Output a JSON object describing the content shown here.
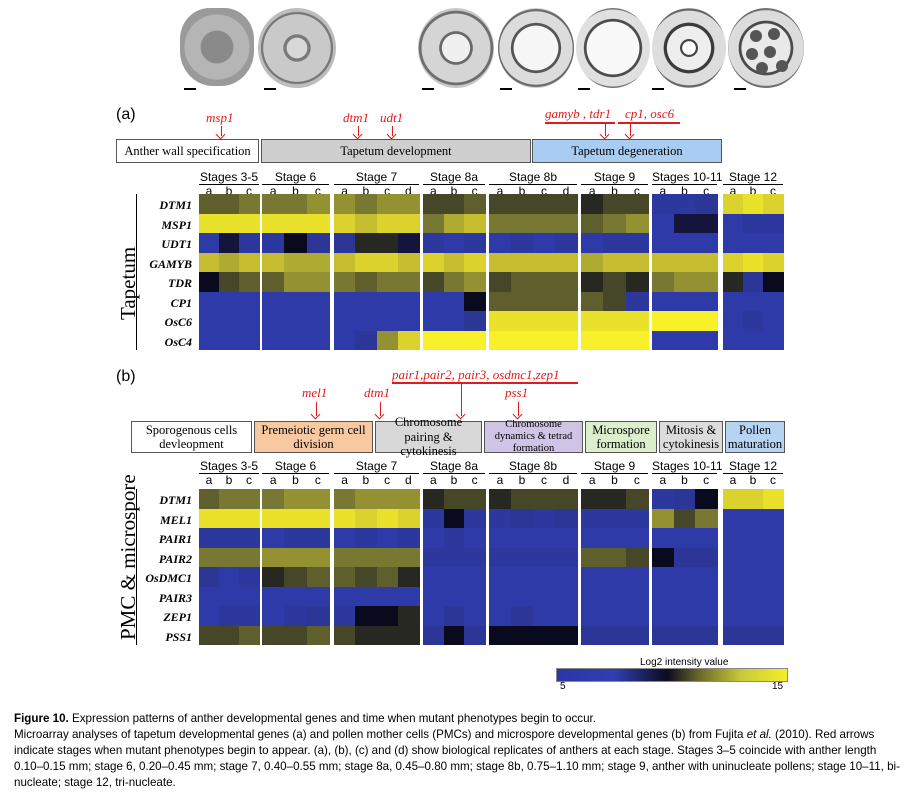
{
  "panel_a": {
    "label": "(a)",
    "side_label": "Tapetum",
    "mutants": [
      {
        "text": "msp1"
      },
      {
        "text": "dtm1"
      },
      {
        "text": "udt1"
      },
      {
        "text": "gamyb , tdr1"
      },
      {
        "text": "cp1, osc6"
      }
    ],
    "phases": [
      "Anther wall specification",
      "Tapetum development",
      "Tapetum degeneration"
    ],
    "genes": [
      "DTM1",
      "MSP1",
      "UDT1",
      "GAMYB",
      "TDR",
      "CP1",
      "OsC6",
      "OsC4"
    ]
  },
  "panel_b": {
    "label": "(b)",
    "side_label": "PMC & microspore",
    "mutants": [
      {
        "text": "mel1"
      },
      {
        "text": "dtm1"
      },
      {
        "text": "pair1,pair2, pair3, osdmc1,zep1"
      },
      {
        "text": "pss1"
      }
    ],
    "phases": [
      "Sporogenous cells devleopment",
      "Premeiotic germ cell division",
      "Chromosome pairing & cytokinesis",
      "Chromosome dynamics & tetrad formation",
      "Microspore formation",
      "Mitosis & cytokinesis",
      "Pollen maturation"
    ],
    "genes": [
      "DTM1",
      "MEL1",
      "PAIR1",
      "PAIR2",
      "OsDMC1",
      "PAIR3",
      "ZEP1",
      "PSS1"
    ]
  },
  "stages": [
    {
      "name": "Stages 3-5",
      "reps": [
        "a",
        "b",
        "c"
      ]
    },
    {
      "name": "Stage 6",
      "reps": [
        "a",
        "b",
        "c"
      ]
    },
    {
      "name": "Stage 7",
      "reps": [
        "a",
        "b",
        "c",
        "d"
      ]
    },
    {
      "name": "Stage 8a",
      "reps": [
        "a",
        "b",
        "c"
      ]
    },
    {
      "name": "Stage 8b",
      "reps": [
        "a",
        "b",
        "c",
        "d"
      ]
    },
    {
      "name": "Stage 9",
      "reps": [
        "a",
        "b",
        "c"
      ]
    },
    {
      "name": "Stages 10-11",
      "reps": [
        "a",
        "b",
        "c"
      ]
    },
    {
      "name": "Stage 12",
      "reps": [
        "a",
        "b",
        "c"
      ]
    }
  ],
  "heatmap_a": [
    [
      7,
      7,
      8,
      8,
      8,
      9,
      9,
      8,
      9,
      9,
      6,
      6,
      7,
      6,
      6,
      6,
      6,
      5,
      6,
      6,
      2,
      2,
      3,
      12,
      13,
      12
    ],
    [
      13,
      13,
      13,
      13,
      13,
      13,
      12,
      11,
      12,
      12,
      8,
      10,
      11,
      8,
      8,
      8,
      8,
      7,
      8,
      9,
      1,
      0,
      0,
      1,
      2,
      2
    ],
    [
      1,
      0,
      2,
      2,
      4,
      3,
      3,
      5,
      5,
      0,
      2,
      1,
      2,
      1,
      2,
      1,
      2,
      1,
      2,
      2,
      1,
      1,
      1,
      1,
      1,
      1
    ],
    [
      11,
      10,
      11,
      11,
      10,
      10,
      11,
      12,
      12,
      11,
      12,
      11,
      12,
      11,
      11,
      11,
      11,
      10,
      11,
      11,
      11,
      11,
      11,
      12,
      13,
      12
    ],
    [
      4,
      6,
      7,
      7,
      9,
      9,
      8,
      7,
      8,
      8,
      6,
      8,
      9,
      6,
      7,
      7,
      7,
      5,
      6,
      5,
      8,
      9,
      9,
      5,
      3,
      4
    ],
    [
      1,
      1,
      1,
      1,
      1,
      1,
      1,
      1,
      1,
      1,
      1,
      1,
      4,
      7,
      7,
      7,
      7,
      7,
      6,
      2,
      1,
      1,
      1,
      1,
      1,
      1
    ],
    [
      1,
      1,
      1,
      1,
      1,
      1,
      1,
      1,
      1,
      1,
      1,
      1,
      3,
      13,
      13,
      13,
      13,
      13,
      13,
      13,
      14,
      14,
      14,
      1,
      2,
      1
    ],
    [
      1,
      1,
      1,
      1,
      1,
      1,
      1,
      3,
      9,
      12,
      14,
      14,
      14,
      14,
      14,
      14,
      14,
      14,
      14,
      14,
      1,
      1,
      1,
      1,
      1,
      1
    ]
  ],
  "heatmap_b": [
    [
      7,
      8,
      8,
      8,
      9,
      9,
      8,
      9,
      9,
      9,
      5,
      6,
      6,
      5,
      6,
      6,
      6,
      5,
      5,
      6,
      2,
      3,
      4,
      12,
      12,
      13
    ],
    [
      13,
      13,
      13,
      13,
      13,
      13,
      13,
      12,
      13,
      12,
      2,
      4,
      2,
      2,
      3,
      2,
      3,
      2,
      2,
      2,
      9,
      6,
      8,
      1,
      1,
      1
    ],
    [
      2,
      2,
      2,
      1,
      2,
      2,
      1,
      2,
      1,
      2,
      1,
      2,
      1,
      1,
      1,
      1,
      1,
      1,
      1,
      1,
      1,
      1,
      1,
      1,
      1,
      1
    ],
    [
      8,
      8,
      8,
      9,
      9,
      9,
      8,
      8,
      8,
      8,
      2,
      2,
      2,
      2,
      2,
      2,
      2,
      7,
      7,
      6,
      4,
      3,
      3,
      1,
      1,
      1
    ],
    [
      3,
      1,
      2,
      5,
      6,
      7,
      7,
      6,
      7,
      5,
      1,
      1,
      1,
      1,
      1,
      1,
      1,
      1,
      1,
      1,
      1,
      1,
      1,
      1,
      1,
      1
    ],
    [
      1,
      1,
      1,
      1,
      1,
      1,
      1,
      1,
      1,
      1,
      1,
      1,
      1,
      1,
      1,
      1,
      1,
      1,
      1,
      1,
      1,
      1,
      1,
      1,
      1,
      1
    ],
    [
      1,
      2,
      2,
      1,
      2,
      3,
      2,
      4,
      4,
      5,
      1,
      3,
      1,
      1,
      3,
      1,
      1,
      1,
      1,
      1,
      1,
      1,
      1,
      1,
      1,
      1
    ],
    [
      6,
      6,
      7,
      6,
      6,
      7,
      6,
      5,
      5,
      5,
      3,
      4,
      3,
      4,
      4,
      4,
      4,
      3,
      3,
      3,
      3,
      3,
      3,
      3,
      3,
      3
    ]
  ],
  "legend": {
    "title": "Log2 intensity value",
    "min": "5",
    "max": "15"
  },
  "caption": {
    "title_bold": "Figure 10.",
    "title_rest": "Expression patterns of anther developmental genes and time when mutant phenotypes begin to occur.",
    "body_1": "Microarray analyses of tapetum developmental genes (a) and pollen mother cells (PMCs) and microspore developmental genes (b) from Fujita ",
    "body_italic": "et al.",
    "body_2": " (2010). Red arrows indicate stages when mutant phenotypes begin to appear. (a), (b), (c) and (d) show biological replicates of anthers at each stage. Stages 3–5 coincide with anther length 0.10–0.15 mm; stage 6, 0.20–0.45 mm; stage 7, 0.40–0.55 mm; stage 8a, 0.45–0.80 mm; stage 8b, 0.75–1.10 mm; stage 9, anther with uninucleate pollens; stage 10–11, bi-nucleate; stage 12, tri-nucleate."
  }
}
